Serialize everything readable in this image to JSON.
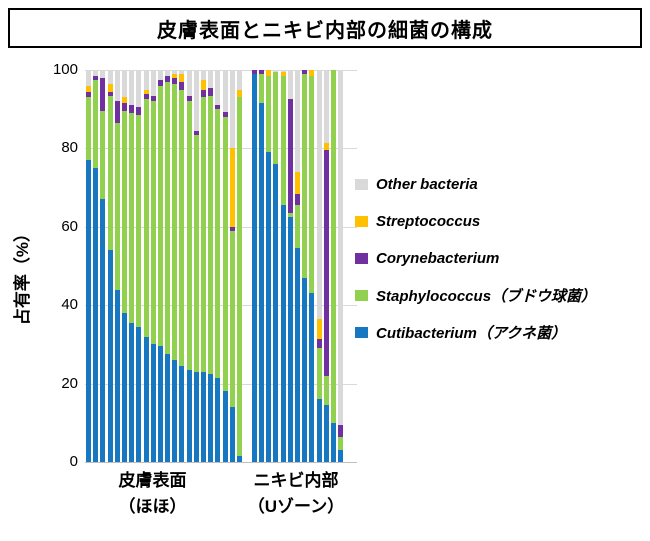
{
  "title": "皮膚表面とニキビ内部の細菌の構成",
  "chart_data": {
    "type": "bar",
    "stacked": true,
    "title": "皮膚表面とニキビ内部の細菌の構成",
    "ylabel": "占有率（%）",
    "unit": "%",
    "ylim": [
      0,
      100
    ],
    "yticks": [
      0,
      20,
      40,
      60,
      80,
      100
    ],
    "grid": "horizontal",
    "legend_position": "right",
    "segment_order_bottom_to_top": [
      "Cutibacterium（アクネ菌）",
      "Staphylococcus（ブドウ球菌）",
      "Corynebacterium",
      "Streptococcus",
      "Other bacteria"
    ],
    "segment_colors": {
      "Cutibacterium（アクネ菌）": "#1777C0",
      "Staphylococcus（ブドウ球菌）": "#92D050",
      "Corynebacterium": "#7030A0",
      "Streptococcus": "#FFC000",
      "Other bacteria": "#D9D9D9"
    },
    "groups": [
      {
        "label": [
          "皮膚表面",
          "（ほほ）"
        ],
        "bars": [
          [
            77,
            16,
            1.5,
            1.5,
            4
          ],
          [
            75,
            22.5,
            1,
            0,
            1.5
          ],
          [
            67,
            22.5,
            8.5,
            0,
            2
          ],
          [
            54,
            39.5,
            1,
            2,
            3.5
          ],
          [
            44,
            42.5,
            5.5,
            0,
            8
          ],
          [
            38,
            51.5,
            2,
            1.5,
            7
          ],
          [
            35.5,
            53.5,
            2,
            0,
            9
          ],
          [
            34.5,
            54,
            2,
            0,
            9.5
          ],
          [
            32,
            60.5,
            1.5,
            1,
            5
          ],
          [
            30,
            62,
            1.5,
            0,
            6.5
          ],
          [
            29.5,
            66.5,
            1.5,
            0,
            2.5
          ],
          [
            27.5,
            69.5,
            1.5,
            0,
            1.5
          ],
          [
            26,
            70.5,
            1.5,
            1,
            1
          ],
          [
            24.5,
            70.5,
            2,
            2,
            1
          ],
          [
            23.5,
            68.5,
            1.5,
            0,
            6.5
          ],
          [
            23,
            60.5,
            1,
            0,
            15.5
          ],
          [
            23,
            70,
            2,
            2.5,
            2.5
          ],
          [
            22.5,
            71,
            2,
            0,
            4.5
          ],
          [
            21.5,
            68.5,
            1,
            0,
            9
          ],
          [
            18,
            70,
            1.3,
            0,
            10.7
          ],
          [
            14,
            45,
            1,
            20,
            20
          ],
          [
            1.5,
            91.5,
            0,
            2,
            5
          ]
        ]
      },
      {
        "label": [
          "ニキビ内部",
          "（Uゾーン）"
        ],
        "bars": [
          [
            99,
            0,
            1,
            0,
            0
          ],
          [
            91.5,
            7.5,
            1,
            0,
            0
          ],
          [
            79,
            19.5,
            0,
            1.5,
            0
          ],
          [
            76,
            23.5,
            0,
            0,
            0.5
          ],
          [
            65.5,
            33,
            0,
            1,
            0.5
          ],
          [
            62.5,
            1,
            29,
            0,
            7.5
          ],
          [
            54.5,
            11,
            3,
            5.5,
            26
          ],
          [
            47,
            52,
            1,
            0,
            0
          ],
          [
            43,
            55.5,
            0,
            1.5,
            0
          ],
          [
            16,
            13,
            2.5,
            5,
            63.5
          ],
          [
            14.5,
            7.5,
            57.5,
            2,
            18.5
          ],
          [
            10,
            90,
            0,
            0,
            0
          ],
          [
            3,
            3.5,
            3,
            0,
            90.5
          ]
        ]
      }
    ],
    "legend": [
      {
        "label": "Other bacteria",
        "color": "#D9D9D9"
      },
      {
        "label": "Streptococcus",
        "color": "#FFC000"
      },
      {
        "label": "Corynebacterium",
        "color": "#7030A0"
      },
      {
        "label": "Staphylococcus（ブドウ球菌）",
        "color": "#92D050"
      },
      {
        "label": "Cutibacterium（アクネ菌）",
        "color": "#1777C0"
      }
    ]
  }
}
